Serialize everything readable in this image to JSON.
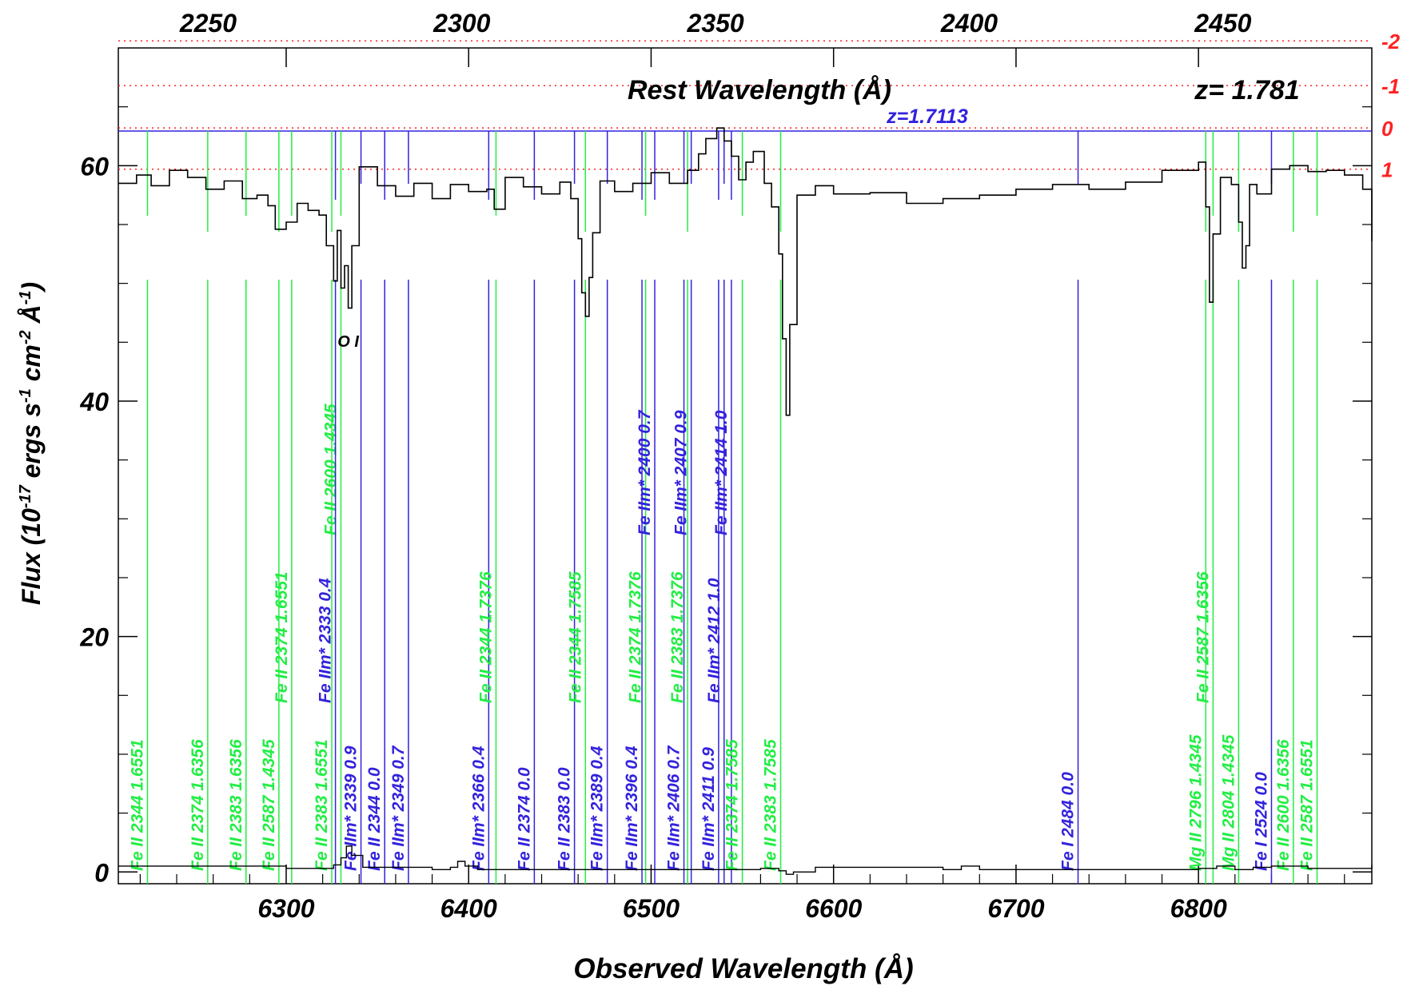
{
  "chart_data": {
    "type": "line",
    "xlabel": "Observed Wavelength (Å)",
    "ylabel": "Flux (10^-17 ergs s^-1 cm^-2 Å^-1)",
    "top_axis_label": "Rest Wavelength (Å)",
    "redshift_label": "z= 1.781",
    "absorber_label": "z=1.7113",
    "xlim": [
      6208,
      6895
    ],
    "ylim": [
      -1,
      70
    ],
    "x_ticks": [
      6300,
      6400,
      6500,
      6600,
      6700,
      6800
    ],
    "y_ticks": [
      0,
      20,
      40,
      60
    ],
    "top_ticks": [
      2250,
      2300,
      2350,
      2400,
      2450
    ],
    "redshift": 1.781,
    "grid": false,
    "colors": {
      "spectrum": "#000000",
      "line_green": "#22ee44",
      "line_blue": "#3322dd",
      "ref_red": "#ff2222"
    },
    "reference_levels": [
      {
        "label": "-2",
        "flux": 70.6
      },
      {
        "label": "-1",
        "flux": 66.8
      },
      {
        "label": "0",
        "flux": 63.2
      },
      {
        "label": "1",
        "flux": 59.7
      }
    ],
    "annotations": [
      {
        "text": "O I",
        "x": 6334,
        "y": 44.6
      }
    ],
    "spectrum": {
      "name": "",
      "x": [
        6208,
        6218,
        6226,
        6236,
        6246,
        6256,
        6266,
        6276,
        6284,
        6290,
        6294,
        6300,
        6306,
        6312,
        6318,
        6322,
        6326,
        6328,
        6330,
        6332,
        6334,
        6336,
        6340,
        6350,
        6360,
        6370,
        6380,
        6390,
        6400,
        6410,
        6414,
        6420,
        6430,
        6440,
        6450,
        6456,
        6460,
        6462,
        6464,
        6466,
        6468,
        6472,
        6480,
        6490,
        6500,
        6510,
        6520,
        6526,
        6530,
        6536,
        6540,
        6544,
        6548,
        6552,
        6556,
        6562,
        6566,
        6570,
        6572,
        6574,
        6576,
        6580,
        6590,
        6600,
        6620,
        6640,
        6660,
        6680,
        6700,
        6720,
        6740,
        6760,
        6780,
        6800,
        6804,
        6806,
        6808,
        6812,
        6818,
        6822,
        6824,
        6826,
        6828,
        6832,
        6840,
        6850,
        6860,
        6870,
        6880,
        6890,
        6895
      ],
      "values": [
        58.5,
        59.2,
        58.3,
        59.6,
        59.0,
        58.0,
        58.7,
        57.2,
        57.5,
        56.6,
        54.6,
        55.2,
        56.8,
        56.2,
        55.8,
        53.2,
        50.2,
        54.5,
        49.6,
        51.5,
        47.9,
        53.2,
        59.9,
        58.3,
        57.4,
        58.5,
        57.2,
        58.4,
        57.8,
        58.0,
        56.3,
        59.0,
        58.2,
        57.6,
        58.6,
        57.2,
        53.8,
        49.2,
        47.2,
        50.5,
        54.3,
        58.7,
        57.8,
        58.5,
        59.4,
        58.5,
        59.6,
        61.0,
        62.3,
        63.2,
        62.1,
        60.8,
        58.8,
        60.3,
        61.2,
        58.5,
        56.5,
        52.5,
        45.3,
        38.8,
        46.5,
        57.5,
        58.3,
        57.6,
        57.7,
        56.8,
        57.2,
        57.5,
        58.0,
        58.4,
        58.0,
        58.6,
        59.6,
        60.3,
        56.5,
        48.4,
        54.2,
        59.0,
        58.4,
        55.2,
        51.3,
        53.2,
        58.4,
        57.6,
        59.7,
        60.0,
        59.5,
        59.6,
        59.2,
        58.0,
        53.6
      ]
    },
    "error": {
      "name": "",
      "x": [
        6208,
        6300,
        6320,
        6326,
        6330,
        6333,
        6336,
        6342,
        6380,
        6390,
        6394,
        6398,
        6405,
        6480,
        6560,
        6570,
        6574,
        6578,
        6590,
        6660,
        6670,
        6680,
        6800,
        6810,
        6820,
        6830,
        6840,
        6860,
        6890,
        6895
      ],
      "values": [
        0.5,
        0.3,
        0.3,
        0.6,
        1.2,
        2.2,
        1.4,
        0.4,
        0.2,
        0.4,
        0.9,
        0.5,
        0.2,
        0.2,
        0.3,
        0.1,
        -0.2,
        0.0,
        0.4,
        0.2,
        0.5,
        0.2,
        0.3,
        0.5,
        0.2,
        0.4,
        0.5,
        0.3,
        0.3,
        0.6
      ]
    },
    "line_ids": [
      {
        "label": "Fe II 2344 1.6551",
        "x": 6224,
        "color": "green",
        "level": 1
      },
      {
        "label": "Fe II 2374 1.6356",
        "x": 6257,
        "color": "green",
        "level": 1
      },
      {
        "label": "Fe II 2383 1.6356",
        "x": 6278,
        "color": "green",
        "level": 1
      },
      {
        "label": "Fe II 2587 1.4345",
        "x": 6296,
        "color": "green",
        "level": 1
      },
      {
        "label": "Fe II 2374 1.6551",
        "x": 6303,
        "color": "green",
        "level": 2
      },
      {
        "label": "Fe II 2383 1.6551",
        "x": 6325,
        "color": "green",
        "level": 1
      },
      {
        "label": "Fe II 2600 1.4345",
        "x": 6330,
        "color": "green",
        "level": 3
      },
      {
        "label": "Fe IIm* 2333 0.4",
        "x": 6327,
        "color": "blue",
        "level": 2
      },
      {
        "label": "Fe IIm* 2339 0.9",
        "x": 6341,
        "color": "blue",
        "level": 1
      },
      {
        "label": "Fe II 2344 0.0",
        "x": 6354,
        "color": "blue",
        "level": 1
      },
      {
        "label": "Fe IIm* 2349 0.7",
        "x": 6367,
        "color": "blue",
        "level": 1
      },
      {
        "label": "Fe IIm* 2366 0.4",
        "x": 6411,
        "color": "blue",
        "level": 1
      },
      {
        "label": "Fe II 2344 1.7376",
        "x": 6415,
        "color": "green",
        "level": 2
      },
      {
        "label": "Fe II 2374 0.0",
        "x": 6436,
        "color": "blue",
        "level": 1
      },
      {
        "label": "Fe II 2383 0.0",
        "x": 6458,
        "color": "blue",
        "level": 1
      },
      {
        "label": "Fe II 2344 1.7585",
        "x": 6464,
        "color": "green",
        "level": 2
      },
      {
        "label": "Fe IIm* 2389 0.4",
        "x": 6476,
        "color": "blue",
        "level": 1
      },
      {
        "label": "Fe IIm* 2396 0.4",
        "x": 6495,
        "color": "blue",
        "level": 1
      },
      {
        "label": "Fe II 2374 1.7376",
        "x": 6497,
        "color": "green",
        "level": 2
      },
      {
        "label": "Fe IIm* 2400 0.7",
        "x": 6502,
        "color": "blue",
        "level": 3
      },
      {
        "label": "Fe IIm* 2406 0.7",
        "x": 6518,
        "color": "blue",
        "level": 1
      },
      {
        "label": "Fe II 2383 1.7376",
        "x": 6520,
        "color": "green",
        "level": 2
      },
      {
        "label": "Fe IIm* 2407 0.9",
        "x": 6522,
        "color": "blue",
        "level": 3
      },
      {
        "label": "Fe IIm* 2411 0.9",
        "x": 6537,
        "color": "blue",
        "level": 1
      },
      {
        "label": "Fe IIm* 2412 1.0",
        "x": 6540,
        "color": "blue",
        "level": 2
      },
      {
        "label": "Fe IIm* 2414 1.0",
        "x": 6544,
        "color": "blue",
        "level": 3
      },
      {
        "label": "Fe II 2374 1.7585",
        "x": 6550,
        "color": "green",
        "level": 1
      },
      {
        "label": "Fe II 2383 1.7585",
        "x": 6571,
        "color": "green",
        "level": 1
      },
      {
        "label": "Fe I 2484 0.0",
        "x": 6734,
        "color": "blue",
        "level": 1
      },
      {
        "label": "Mg II 2796 1.4345",
        "x": 6804,
        "color": "green",
        "level": 1
      },
      {
        "label": "Fe II 2587 1.6356",
        "x": 6808,
        "color": "green",
        "level": 2
      },
      {
        "label": "Mg II 2804 1.4345",
        "x": 6822,
        "color": "green",
        "level": 1
      },
      {
        "label": "Fe I 2524 0.0",
        "x": 6840,
        "color": "blue",
        "level": 1
      },
      {
        "label": "Fe II 2600 1.6356",
        "x": 6852,
        "color": "green",
        "level": 1
      },
      {
        "label": "Fe II 2587 1.6551",
        "x": 6865,
        "color": "green",
        "level": 1
      }
    ]
  }
}
